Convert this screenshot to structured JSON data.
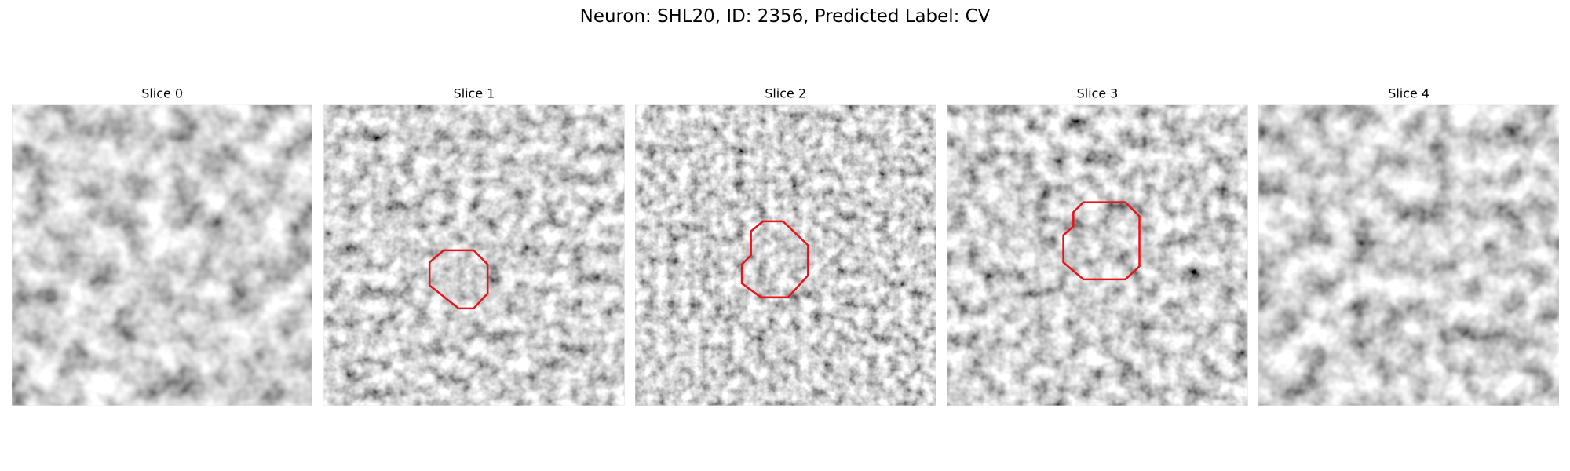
{
  "title": "Neuron: SHL20, ID: 2356, Predicted Label: CV",
  "panels": [
    {
      "title": "Slice 0"
    },
    {
      "title": "Slice 1"
    },
    {
      "title": "Slice 2"
    },
    {
      "title": "Slice 3"
    },
    {
      "title": "Slice 4"
    }
  ]
}
